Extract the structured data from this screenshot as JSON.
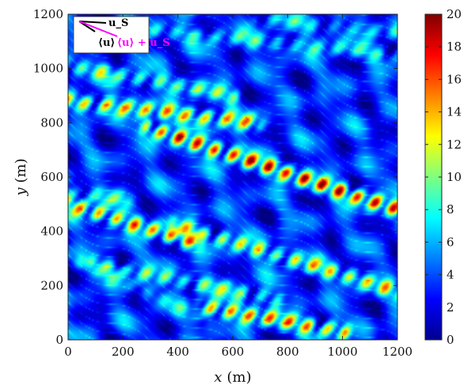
{
  "chart_data": {
    "type": "heatmap",
    "title": "",
    "xlabel": {
      "italic": "x",
      "unit": "(m)"
    },
    "ylabel": {
      "italic": "y",
      "unit": "(m)"
    },
    "xlim": [
      0,
      1200
    ],
    "ylim": [
      0,
      1200
    ],
    "xticks": [
      "0",
      "200",
      "400",
      "600",
      "800",
      "1000",
      "1200"
    ],
    "yticks": [
      "0",
      "200",
      "400",
      "600",
      "800",
      "1000",
      "1200"
    ],
    "colorbar": {
      "min": 0,
      "max": 20,
      "ticks": [
        "0",
        "2",
        "4",
        "6",
        "8",
        "10",
        "12",
        "14",
        "16",
        "18",
        "20"
      ],
      "colormap": "jet"
    },
    "field_description_bands": [
      {
        "x0": 0,
        "y0": 1010,
        "x1": 600,
        "y1": 900,
        "peak": 10
      },
      {
        "x0": 0,
        "y0": 880,
        "x1": 680,
        "y1": 800,
        "peak": 15
      },
      {
        "x0": 300,
        "y0": 780,
        "x1": 1200,
        "y1": 480,
        "peak": 19
      },
      {
        "x0": 0,
        "y0": 500,
        "x1": 450,
        "y1": 360,
        "peak": 16
      },
      {
        "x0": 0,
        "y0": 540,
        "x1": 200,
        "y1": 520,
        "peak": 8
      },
      {
        "x0": 400,
        "y0": 420,
        "x1": 1200,
        "y1": 180,
        "peak": 13
      },
      {
        "x0": 100,
        "y0": 280,
        "x1": 750,
        "y1": 150,
        "peak": 10
      },
      {
        "x0": 500,
        "y0": 120,
        "x1": 1000,
        "y1": 30,
        "peak": 16
      },
      {
        "x0": 200,
        "y0": 1150,
        "x1": 1200,
        "y1": 1050,
        "peak": 8
      },
      {
        "x0": 700,
        "y0": 1180,
        "x1": 1200,
        "y1": 1130,
        "peak": 7
      },
      {
        "x0": 0,
        "y0": 300,
        "x1": 500,
        "y1": 80,
        "peak": 6
      }
    ],
    "legend": {
      "position": "top-left",
      "entries": [
        {
          "label": "u_S",
          "color": "#000000",
          "direction_deg": 8
        },
        {
          "label": "⟨u⟩",
          "color": "#000000",
          "direction_deg": -35
        },
        {
          "label": "⟨u⟩ + u_S",
          "color": "#ff00ff",
          "direction_deg": -25
        }
      ]
    }
  }
}
